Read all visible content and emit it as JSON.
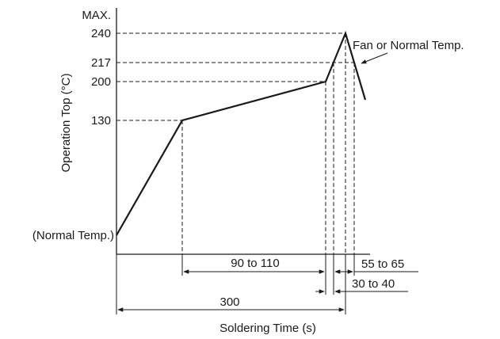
{
  "diagram": {
    "y_axis_label": "Operation Top (°C)",
    "x_axis_label": "Soldering Time (s)",
    "max_label": "MAX.",
    "normal_temp_label": "(Normal Temp.)",
    "cooling_label": "Fan or Normal Temp.",
    "temperature_ticks": [
      "240",
      "217",
      "200",
      "130"
    ],
    "durations": {
      "preheat": "90 to 110",
      "above_217": "55 to 65",
      "above_240_window": "30 to 40",
      "total": "300"
    }
  }
}
